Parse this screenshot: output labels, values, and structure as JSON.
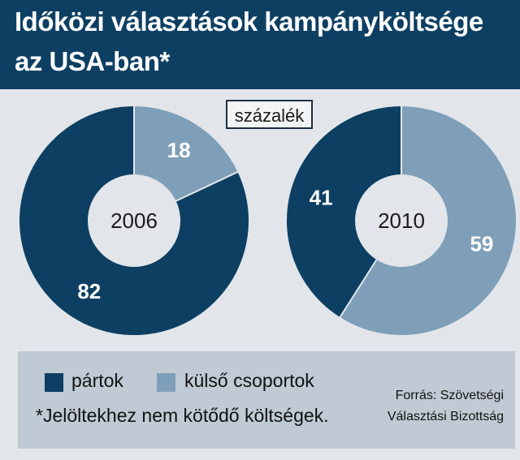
{
  "title_line1": "Időközi választások kampányköltsége",
  "title_line2": "az USA-ban*",
  "unit_label": "százalék",
  "chart_data": {
    "type": "pie",
    "unit": "százalék",
    "series_names": [
      "pártok",
      "külső csoportok"
    ],
    "colors": [
      "#0d3f63",
      "#7f9fb8"
    ],
    "charts": [
      {
        "label": "2006",
        "values": [
          82,
          18
        ]
      },
      {
        "label": "2010",
        "values": [
          41,
          59
        ]
      }
    ]
  },
  "legend": {
    "items": [
      {
        "label": "pártok",
        "color": "#0d3f63"
      },
      {
        "label": "külső csoportok",
        "color": "#7f9fb8"
      }
    ],
    "note": "*Jelöltekhez nem kötődő költségek.",
    "source_line1": "Forrás: Szövetségi",
    "source_line2": "Választási Bizottság"
  }
}
